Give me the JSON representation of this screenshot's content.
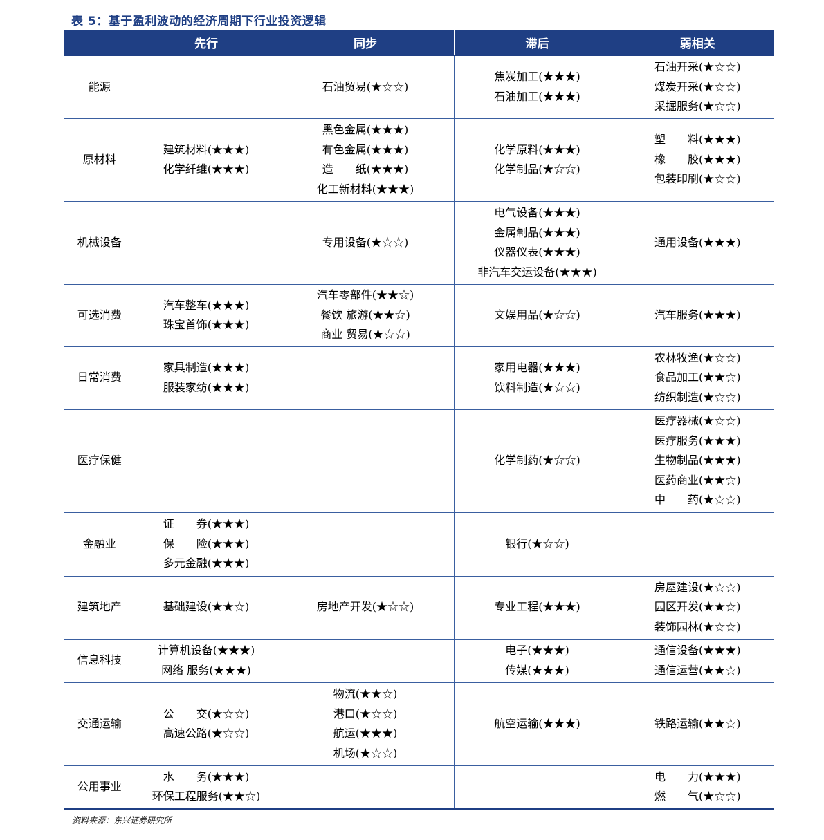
{
  "title": "表 5：基于盈利波动的经济周期下行业投资逻辑",
  "headers": [
    "",
    "先行",
    "同步",
    "滞后",
    "弱相关"
  ],
  "rows": [
    {
      "sector": "能源",
      "leading": [],
      "sync": [
        "石油贸易(★☆☆)"
      ],
      "lagging": [
        "焦炭加工(★★★)",
        "石油加工(★★★)"
      ],
      "weak": [
        "石油开采(★☆☆)",
        "煤炭开采(★☆☆)",
        "采掘服务(★☆☆)"
      ]
    },
    {
      "sector": "原材料",
      "leading": [
        "建筑材料(★★★)",
        "化学纤维(★★★)"
      ],
      "sync": [
        "黑色金属(★★★)",
        "有色金属(★★★)",
        "造　　纸(★★★)",
        "化工新材料(★★★)"
      ],
      "lagging": [
        "化学原料(★★★)",
        "化学制品(★☆☆)"
      ],
      "weak": [
        "塑　　料(★★★)",
        "橡　　胶(★★★)",
        "包装印刷(★☆☆)"
      ]
    },
    {
      "sector": "机械设备",
      "leading": [],
      "sync": [
        "专用设备(★☆☆)"
      ],
      "lagging": [
        "电气设备(★★★)",
        "金属制品(★★★)",
        "仪器仪表(★★★)",
        "非汽车交运设备(★★★)"
      ],
      "weak": [
        "通用设备(★★★)"
      ]
    },
    {
      "sector": "可选消费",
      "leading": [
        "汽车整车(★★★)",
        "珠宝首饰(★★★)"
      ],
      "sync": [
        "汽车零部件(★★☆)",
        "餐饮 旅游(★★☆)",
        "商业 贸易(★☆☆)"
      ],
      "lagging": [
        "文娱用品(★☆☆)"
      ],
      "weak": [
        "汽车服务(★★★)"
      ]
    },
    {
      "sector": "日常消费",
      "leading": [
        "家具制造(★★★)",
        "服装家纺(★★★)"
      ],
      "sync": [],
      "lagging": [
        "家用电器(★★★)",
        "饮料制造(★☆☆)"
      ],
      "weak": [
        "农林牧渔(★☆☆)",
        "食品加工(★★☆)",
        "纺织制造(★☆☆)"
      ]
    },
    {
      "sector": "医疗保健",
      "leading": [],
      "sync": [],
      "lagging": [
        "化学制药(★☆☆)"
      ],
      "weak": [
        "医疗器械(★☆☆)",
        "医疗服务(★★★)",
        "生物制品(★★★)",
        "医药商业(★★☆)",
        "中　　药(★☆☆)"
      ]
    },
    {
      "sector": "金融业",
      "leading": [
        "证　　券(★★★)",
        "保　　险(★★★)",
        "多元金融(★★★)"
      ],
      "sync": [],
      "lagging": [
        "银行(★☆☆)"
      ],
      "weak": []
    },
    {
      "sector": "建筑地产",
      "leading": [
        "基础建设(★★☆)"
      ],
      "sync": [
        "房地产开发(★☆☆)"
      ],
      "lagging": [
        "专业工程(★★★)"
      ],
      "weak": [
        "房屋建设(★☆☆)",
        "园区开发(★★☆)",
        "装饰园林(★☆☆)"
      ]
    },
    {
      "sector": "信息科技",
      "leading": [
        "计算机设备(★★★)",
        "网络 服务(★★★)"
      ],
      "sync": [],
      "lagging": [
        "电子(★★★)",
        "传媒(★★★)"
      ],
      "weak": [
        "通信设备(★★★)",
        "通信运营(★★☆)"
      ]
    },
    {
      "sector": "交通运输",
      "leading": [
        "公　　交(★☆☆)",
        "高速公路(★☆☆)"
      ],
      "sync": [
        "物流(★★☆)",
        "港口(★☆☆)",
        "航运(★★★)",
        "机场(★☆☆)"
      ],
      "lagging": [
        "航空运输(★★★)"
      ],
      "weak": [
        "铁路运输(★★☆)"
      ]
    },
    {
      "sector": "公用事业",
      "leading": [
        "水　　务(★★★)",
        "环保工程服务(★★☆)"
      ],
      "sync": [],
      "lagging": [],
      "weak": [
        "电　　力(★★★)",
        "燃　　气(★☆☆)"
      ]
    }
  ],
  "source": "资料来源：东兴证券研究所"
}
